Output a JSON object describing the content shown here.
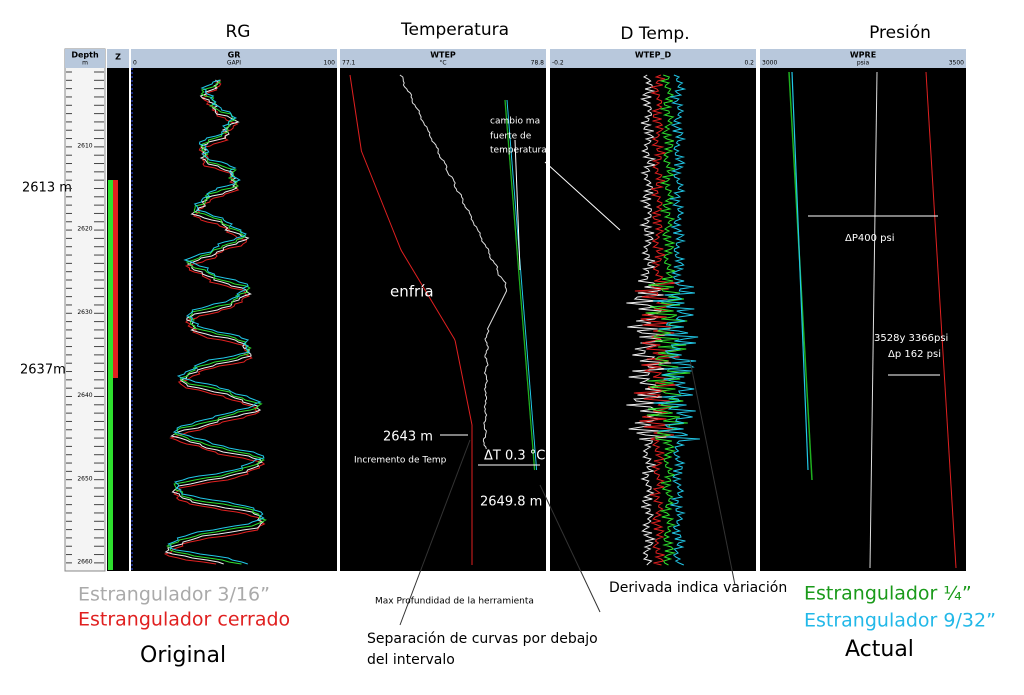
{
  "titles": [
    "RG",
    "Temperatura",
    "D Temp.",
    "Presión"
  ],
  "tracks": [
    {
      "name": "Depth",
      "unit": "m"
    },
    {
      "name": "Z"
    },
    {
      "name": "GR",
      "unit": "GAPI",
      "min": "0",
      "max": "100"
    },
    {
      "name": "WTEP",
      "unit": "°C",
      "min": "77.1",
      "max": "78.8"
    },
    {
      "name": "WTEP_D",
      "min": "-0.2",
      "max": "0.2"
    },
    {
      "name": "WPRE",
      "unit": "psia",
      "min": "3000",
      "max": "3500"
    }
  ],
  "depth_labels": [
    "2610",
    "2620",
    "2630",
    "2640",
    "2650",
    "2660"
  ],
  "annotations": {
    "top_depth": "2613 m",
    "bottom_depth": "2637m",
    "cambio": [
      "cambio ma",
      "fuerte de",
      "temperatura"
    ],
    "enfria": "enfría",
    "dp400": "ΔP400 psi",
    "psi_pair": "3528y 3366psi",
    "dp162": "Δp 162 psi",
    "d2643": "2643 m",
    "incremento": "Incremento de Temp",
    "dt": "ΔT  0.3 °C",
    "d2649": "2649.8 m",
    "max_prof": "Max Profundidad de la herramienta",
    "separacion": [
      "Separación de curvas por debajo",
      "del intervalo"
    ],
    "derivada": "Derivada indica variación"
  },
  "legend_original": [
    "Estrangulador 3/16”",
    "Estrangulador cerrado",
    "Original"
  ],
  "legend_actual": [
    "Estrangulador ¼”",
    "Estrangulador 9/32”",
    "Actual"
  ]
}
